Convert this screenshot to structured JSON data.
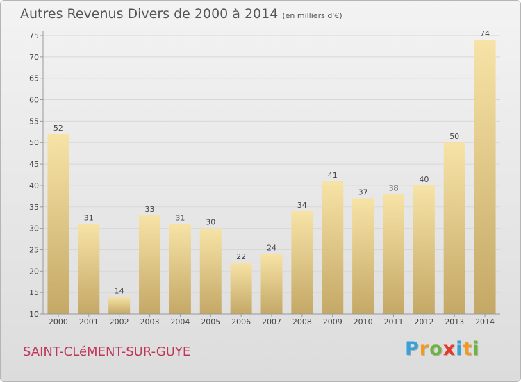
{
  "chart_data": {
    "type": "bar",
    "title": "Autres Revenus Divers de 2000 à 2014",
    "subtitle": "(en milliers d'€)",
    "categories": [
      "2000",
      "2001",
      "2002",
      "2003",
      "2004",
      "2005",
      "2006",
      "2007",
      "2008",
      "2009",
      "2010",
      "2011",
      "2012",
      "2013",
      "2014"
    ],
    "values": [
      52,
      31,
      14,
      33,
      31,
      30,
      22,
      24,
      34,
      41,
      37,
      38,
      40,
      50,
      74
    ],
    "ylim": [
      10,
      75
    ],
    "yticks": [
      10,
      15,
      20,
      25,
      30,
      35,
      40,
      45,
      50,
      55,
      60,
      65,
      70,
      75
    ],
    "grid": true,
    "bar_color_top": "#f7e3a6",
    "bar_color_bottom": "#c4a866"
  },
  "footer": {
    "commune": "SAINT-CLéMENT-SUR-GUYE",
    "logo_letters": [
      "P",
      "r",
      "o",
      "x",
      "i",
      "t",
      "i"
    ],
    "logo_colors": [
      "#3aa0d8",
      "#f19a1f",
      "#6db33f",
      "#e8382b",
      "#3aa0d8",
      "#f19a1f",
      "#6db33f"
    ]
  }
}
